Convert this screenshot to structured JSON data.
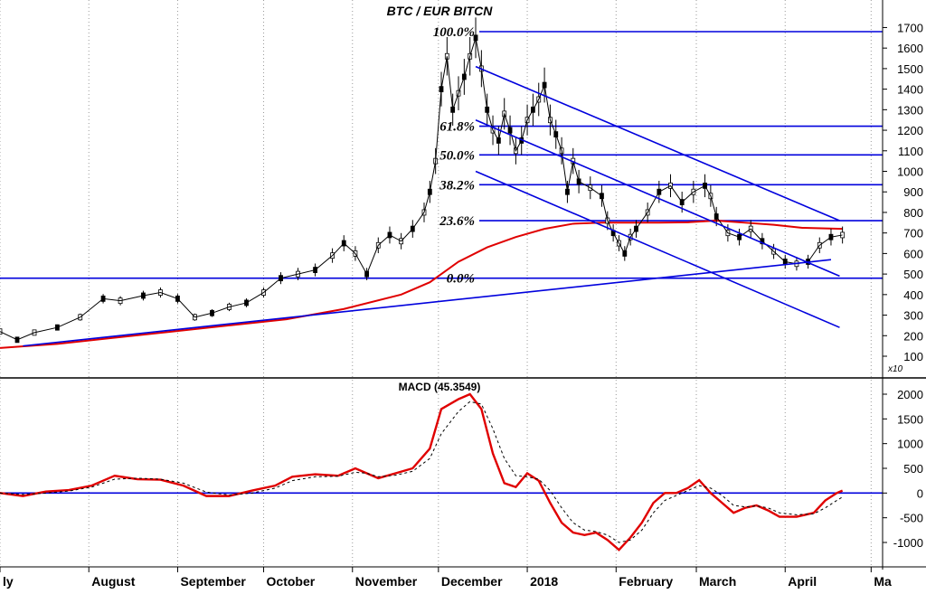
{
  "chart_data": [
    {
      "type": "candlestick",
      "title": "BTC / EUR BITCN",
      "scale_note": "x10",
      "y_ticks": [
        100,
        200,
        300,
        400,
        500,
        600,
        700,
        800,
        900,
        1000,
        1100,
        1200,
        1300,
        1400,
        1500,
        1600,
        1700
      ],
      "ylim": [
        60,
        1800
      ],
      "y_axis_side": "right",
      "x_month_labels": [
        {
          "label": "ly",
          "x": 0
        },
        {
          "label": "August",
          "x": 31
        },
        {
          "label": "September",
          "x": 62
        },
        {
          "label": "October",
          "x": 92
        },
        {
          "label": "November",
          "x": 123
        },
        {
          "label": "December",
          "x": 153
        },
        {
          "label": "2018",
          "x": 184
        },
        {
          "label": "February",
          "x": 215
        },
        {
          "label": "March",
          "x": 243
        },
        {
          "label": "April",
          "x": 274
        },
        {
          "label": "Ma",
          "x": 304
        }
      ],
      "xlim": [
        0,
        308
      ],
      "fibonacci": [
        {
          "label": "100.0%",
          "value": 1680
        },
        {
          "label": "61.8%",
          "value": 1220
        },
        {
          "label": "50.0%",
          "value": 1080
        },
        {
          "label": "38.2%",
          "value": 935
        },
        {
          "label": "23.6%",
          "value": 760
        },
        {
          "label": "0.0%",
          "value": 480
        }
      ],
      "price_series": [
        {
          "x": 0,
          "v": 220
        },
        {
          "x": 6,
          "v": 180
        },
        {
          "x": 12,
          "v": 215
        },
        {
          "x": 20,
          "v": 240
        },
        {
          "x": 28,
          "v": 290
        },
        {
          "x": 36,
          "v": 380
        },
        {
          "x": 42,
          "v": 370
        },
        {
          "x": 50,
          "v": 395
        },
        {
          "x": 56,
          "v": 410
        },
        {
          "x": 62,
          "v": 380
        },
        {
          "x": 68,
          "v": 290
        },
        {
          "x": 74,
          "v": 310
        },
        {
          "x": 80,
          "v": 340
        },
        {
          "x": 86,
          "v": 360
        },
        {
          "x": 92,
          "v": 410
        },
        {
          "x": 98,
          "v": 480
        },
        {
          "x": 104,
          "v": 500
        },
        {
          "x": 110,
          "v": 520
        },
        {
          "x": 116,
          "v": 590
        },
        {
          "x": 120,
          "v": 650
        },
        {
          "x": 124,
          "v": 600
        },
        {
          "x": 128,
          "v": 500
        },
        {
          "x": 132,
          "v": 640
        },
        {
          "x": 136,
          "v": 690
        },
        {
          "x": 140,
          "v": 660
        },
        {
          "x": 144,
          "v": 720
        },
        {
          "x": 148,
          "v": 800
        },
        {
          "x": 150,
          "v": 900
        },
        {
          "x": 152,
          "v": 1050
        },
        {
          "x": 154,
          "v": 1400
        },
        {
          "x": 156,
          "v": 1560
        },
        {
          "x": 158,
          "v": 1300
        },
        {
          "x": 160,
          "v": 1380
        },
        {
          "x": 162,
          "v": 1460
        },
        {
          "x": 164,
          "v": 1560
        },
        {
          "x": 166,
          "v": 1650
        },
        {
          "x": 168,
          "v": 1500
        },
        {
          "x": 170,
          "v": 1300
        },
        {
          "x": 172,
          "v": 1200
        },
        {
          "x": 174,
          "v": 1150
        },
        {
          "x": 176,
          "v": 1280
        },
        {
          "x": 178,
          "v": 1200
        },
        {
          "x": 180,
          "v": 1100
        },
        {
          "x": 182,
          "v": 1150
        },
        {
          "x": 184,
          "v": 1250
        },
        {
          "x": 186,
          "v": 1300
        },
        {
          "x": 188,
          "v": 1350
        },
        {
          "x": 190,
          "v": 1420
        },
        {
          "x": 192,
          "v": 1250
        },
        {
          "x": 194,
          "v": 1180
        },
        {
          "x": 196,
          "v": 1100
        },
        {
          "x": 198,
          "v": 900
        },
        {
          "x": 200,
          "v": 1050
        },
        {
          "x": 202,
          "v": 950
        },
        {
          "x": 206,
          "v": 920
        },
        {
          "x": 210,
          "v": 880
        },
        {
          "x": 212,
          "v": 760
        },
        {
          "x": 214,
          "v": 700
        },
        {
          "x": 216,
          "v": 650
        },
        {
          "x": 218,
          "v": 600
        },
        {
          "x": 220,
          "v": 680
        },
        {
          "x": 222,
          "v": 720
        },
        {
          "x": 226,
          "v": 800
        },
        {
          "x": 230,
          "v": 900
        },
        {
          "x": 234,
          "v": 930
        },
        {
          "x": 238,
          "v": 850
        },
        {
          "x": 242,
          "v": 900
        },
        {
          "x": 246,
          "v": 930
        },
        {
          "x": 248,
          "v": 880
        },
        {
          "x": 250,
          "v": 780
        },
        {
          "x": 254,
          "v": 700
        },
        {
          "x": 258,
          "v": 680
        },
        {
          "x": 262,
          "v": 720
        },
        {
          "x": 266,
          "v": 660
        },
        {
          "x": 270,
          "v": 610
        },
        {
          "x": 274,
          "v": 560
        },
        {
          "x": 278,
          "v": 550
        },
        {
          "x": 282,
          "v": 560
        },
        {
          "x": 286,
          "v": 640
        },
        {
          "x": 290,
          "v": 680
        },
        {
          "x": 294,
          "v": 690
        }
      ],
      "moving_average": [
        {
          "x": 0,
          "v": 140
        },
        {
          "x": 20,
          "v": 160
        },
        {
          "x": 40,
          "v": 190
        },
        {
          "x": 60,
          "v": 220
        },
        {
          "x": 80,
          "v": 250
        },
        {
          "x": 100,
          "v": 280
        },
        {
          "x": 120,
          "v": 330
        },
        {
          "x": 140,
          "v": 400
        },
        {
          "x": 150,
          "v": 460
        },
        {
          "x": 160,
          "v": 560
        },
        {
          "x": 170,
          "v": 630
        },
        {
          "x": 180,
          "v": 680
        },
        {
          "x": 190,
          "v": 720
        },
        {
          "x": 200,
          "v": 745
        },
        {
          "x": 210,
          "v": 750
        },
        {
          "x": 220,
          "v": 750
        },
        {
          "x": 230,
          "v": 750
        },
        {
          "x": 240,
          "v": 752
        },
        {
          "x": 250,
          "v": 760
        },
        {
          "x": 260,
          "v": 750
        },
        {
          "x": 270,
          "v": 740
        },
        {
          "x": 280,
          "v": 725
        },
        {
          "x": 294,
          "v": 720
        }
      ],
      "trendlines": [
        {
          "from": {
            "x": 8,
            "v": 150
          },
          "to": {
            "x": 290,
            "v": 570
          }
        },
        {
          "from": {
            "x": 166,
            "v": 1510
          },
          "to": {
            "x": 293,
            "v": 760
          }
        },
        {
          "from": {
            "x": 166,
            "v": 1250
          },
          "to": {
            "x": 293,
            "v": 490
          }
        },
        {
          "from": {
            "x": 166,
            "v": 1000
          },
          "to": {
            "x": 293,
            "v": 240
          }
        }
      ]
    },
    {
      "type": "line",
      "title": "MACD (45.3549)",
      "y_ticks": [
        -1000,
        -500,
        0,
        500,
        1000,
        1500,
        2000
      ],
      "ylim": [
        -1400,
        2300
      ],
      "y_axis_side": "right",
      "zero_line": 0,
      "series": [
        {
          "style": "solid-red",
          "points": [
            {
              "x": 0,
              "v": 0
            },
            {
              "x": 8,
              "v": -60
            },
            {
              "x": 16,
              "v": 30
            },
            {
              "x": 24,
              "v": 60
            },
            {
              "x": 32,
              "v": 150
            },
            {
              "x": 40,
              "v": 350
            },
            {
              "x": 48,
              "v": 280
            },
            {
              "x": 56,
              "v": 270
            },
            {
              "x": 64,
              "v": 150
            },
            {
              "x": 72,
              "v": -60
            },
            {
              "x": 80,
              "v": -60
            },
            {
              "x": 88,
              "v": 50
            },
            {
              "x": 96,
              "v": 150
            },
            {
              "x": 102,
              "v": 330
            },
            {
              "x": 110,
              "v": 380
            },
            {
              "x": 118,
              "v": 350
            },
            {
              "x": 124,
              "v": 500
            },
            {
              "x": 128,
              "v": 400
            },
            {
              "x": 132,
              "v": 300
            },
            {
              "x": 138,
              "v": 400
            },
            {
              "x": 144,
              "v": 500
            },
            {
              "x": 150,
              "v": 900
            },
            {
              "x": 154,
              "v": 1700
            },
            {
              "x": 160,
              "v": 1900
            },
            {
              "x": 164,
              "v": 2000
            },
            {
              "x": 168,
              "v": 1700
            },
            {
              "x": 172,
              "v": 800
            },
            {
              "x": 176,
              "v": 200
            },
            {
              "x": 180,
              "v": 120
            },
            {
              "x": 184,
              "v": 400
            },
            {
              "x": 188,
              "v": 250
            },
            {
              "x": 192,
              "v": -200
            },
            {
              "x": 196,
              "v": -600
            },
            {
              "x": 200,
              "v": -800
            },
            {
              "x": 204,
              "v": -850
            },
            {
              "x": 208,
              "v": -800
            },
            {
              "x": 212,
              "v": -950
            },
            {
              "x": 216,
              "v": -1150
            },
            {
              "x": 220,
              "v": -900
            },
            {
              "x": 224,
              "v": -600
            },
            {
              "x": 228,
              "v": -200
            },
            {
              "x": 232,
              "v": 0
            },
            {
              "x": 236,
              "v": 0
            },
            {
              "x": 240,
              "v": 100
            },
            {
              "x": 244,
              "v": 260
            },
            {
              "x": 248,
              "v": 0
            },
            {
              "x": 252,
              "v": -200
            },
            {
              "x": 256,
              "v": -400
            },
            {
              "x": 260,
              "v": -300
            },
            {
              "x": 264,
              "v": -250
            },
            {
              "x": 268,
              "v": -350
            },
            {
              "x": 272,
              "v": -480
            },
            {
              "x": 278,
              "v": -480
            },
            {
              "x": 284,
              "v": -400
            },
            {
              "x": 288,
              "v": -150
            },
            {
              "x": 292,
              "v": 0
            },
            {
              "x": 294,
              "v": 50
            }
          ]
        },
        {
          "style": "dashed-black",
          "points": [
            {
              "x": 0,
              "v": 0
            },
            {
              "x": 8,
              "v": -30
            },
            {
              "x": 16,
              "v": 0
            },
            {
              "x": 24,
              "v": 40
            },
            {
              "x": 32,
              "v": 120
            },
            {
              "x": 40,
              "v": 280
            },
            {
              "x": 48,
              "v": 300
            },
            {
              "x": 56,
              "v": 280
            },
            {
              "x": 64,
              "v": 200
            },
            {
              "x": 72,
              "v": 20
            },
            {
              "x": 80,
              "v": -40
            },
            {
              "x": 88,
              "v": 0
            },
            {
              "x": 96,
              "v": 100
            },
            {
              "x": 102,
              "v": 250
            },
            {
              "x": 110,
              "v": 330
            },
            {
              "x": 118,
              "v": 340
            },
            {
              "x": 124,
              "v": 420
            },
            {
              "x": 128,
              "v": 400
            },
            {
              "x": 132,
              "v": 330
            },
            {
              "x": 138,
              "v": 360
            },
            {
              "x": 144,
              "v": 440
            },
            {
              "x": 150,
              "v": 700
            },
            {
              "x": 154,
              "v": 1200
            },
            {
              "x": 160,
              "v": 1650
            },
            {
              "x": 164,
              "v": 1850
            },
            {
              "x": 168,
              "v": 1800
            },
            {
              "x": 172,
              "v": 1300
            },
            {
              "x": 176,
              "v": 700
            },
            {
              "x": 180,
              "v": 350
            },
            {
              "x": 184,
              "v": 330
            },
            {
              "x": 188,
              "v": 280
            },
            {
              "x": 192,
              "v": 50
            },
            {
              "x": 196,
              "v": -300
            },
            {
              "x": 200,
              "v": -600
            },
            {
              "x": 204,
              "v": -750
            },
            {
              "x": 208,
              "v": -780
            },
            {
              "x": 212,
              "v": -850
            },
            {
              "x": 216,
              "v": -1000
            },
            {
              "x": 220,
              "v": -950
            },
            {
              "x": 224,
              "v": -750
            },
            {
              "x": 228,
              "v": -400
            },
            {
              "x": 232,
              "v": -150
            },
            {
              "x": 236,
              "v": -50
            },
            {
              "x": 240,
              "v": 50
            },
            {
              "x": 244,
              "v": 150
            },
            {
              "x": 248,
              "v": 100
            },
            {
              "x": 252,
              "v": -50
            },
            {
              "x": 256,
              "v": -250
            },
            {
              "x": 260,
              "v": -280
            },
            {
              "x": 264,
              "v": -260
            },
            {
              "x": 268,
              "v": -300
            },
            {
              "x": 272,
              "v": -400
            },
            {
              "x": 278,
              "v": -440
            },
            {
              "x": 284,
              "v": -420
            },
            {
              "x": 288,
              "v": -300
            },
            {
              "x": 292,
              "v": -150
            },
            {
              "x": 294,
              "v": -80
            }
          ]
        }
      ]
    }
  ]
}
